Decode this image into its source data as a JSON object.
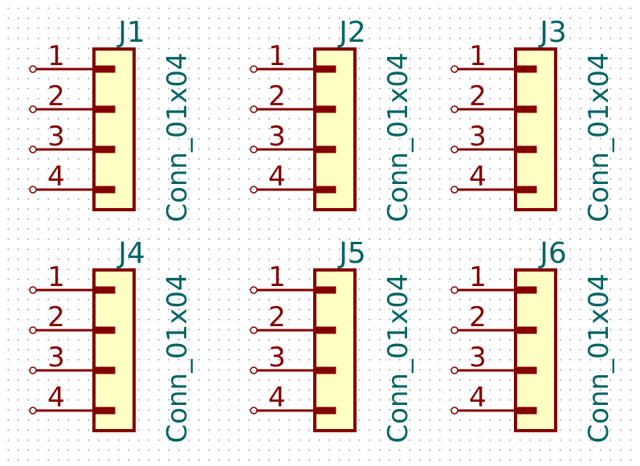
{
  "schematic": {
    "colors": {
      "wire": "#840000",
      "body_fill": "#ffffc4",
      "text": "#006464",
      "grid_dot": "#9a9a9a"
    },
    "connectors": [
      {
        "ref": "J1",
        "value": "Conn_01x04",
        "pins": [
          "1",
          "2",
          "3",
          "4"
        ]
      },
      {
        "ref": "J2",
        "value": "Conn_01x04",
        "pins": [
          "1",
          "2",
          "3",
          "4"
        ]
      },
      {
        "ref": "J3",
        "value": "Conn_01x04",
        "pins": [
          "1",
          "2",
          "3",
          "4"
        ]
      },
      {
        "ref": "J4",
        "value": "Conn_01x04",
        "pins": [
          "1",
          "2",
          "3",
          "4"
        ]
      },
      {
        "ref": "J5",
        "value": "Conn_01x04",
        "pins": [
          "1",
          "2",
          "3",
          "4"
        ]
      },
      {
        "ref": "J6",
        "value": "Conn_01x04",
        "pins": [
          "1",
          "2",
          "3",
          "4"
        ]
      }
    ]
  }
}
